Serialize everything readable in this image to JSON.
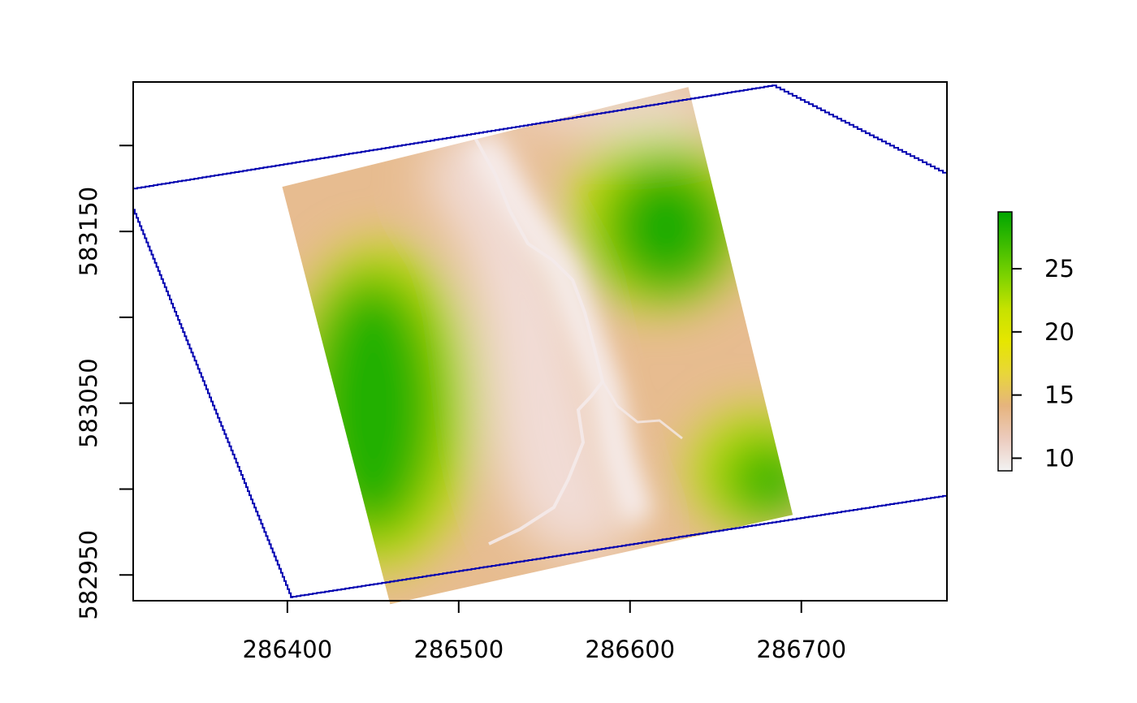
{
  "chart_data": {
    "type": "heatmap",
    "title": "",
    "xlabel": "",
    "ylabel": "",
    "xlim": [
      286310,
      286785
    ],
    "ylim": [
      582935,
      583237
    ],
    "xticks": [
      286400,
      286500,
      286600,
      286700
    ],
    "xtick_labels": [
      "286400",
      "286500",
      "286600",
      "286700"
    ],
    "yticks": [
      582950,
      583000,
      583050,
      583100,
      583150,
      583200
    ],
    "ytick_labels": [
      "582950",
      "",
      "583050",
      "",
      "583150",
      ""
    ],
    "raster_extent": {
      "corners": [
        [
          286397,
          583176
        ],
        [
          286634,
          583234
        ],
        [
          286695,
          582985
        ],
        [
          286460,
          582933
        ]
      ]
    },
    "outline_polygon": [
      [
        286310,
        583175
      ],
      [
        286683,
        583235
      ],
      [
        286785,
        583183
      ],
      [
        286785,
        582996
      ],
      [
        286403,
        582937
      ],
      [
        286310,
        583165
      ]
    ],
    "outline_color": "#0000b0",
    "legend": {
      "position": "right",
      "min": 9,
      "max": 29.5,
      "ticks": [
        10,
        15,
        20,
        25
      ],
      "tick_labels": [
        "10",
        "15",
        "20",
        "25"
      ],
      "colors": [
        "#f2f2f2",
        "#eccbbd",
        "#e6b47e",
        "#e8d63a",
        "#e6e600",
        "#c6e200",
        "#7ed300",
        "#3dbc00",
        "#00a600"
      ]
    }
  }
}
